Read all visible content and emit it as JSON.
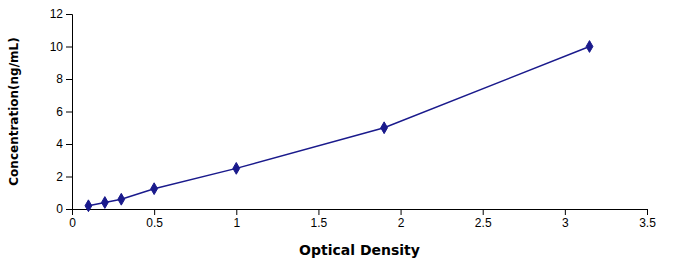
{
  "chart_data": {
    "type": "line",
    "x": [
      0.1,
      0.2,
      0.3,
      0.5,
      1.0,
      1.9,
      3.15
    ],
    "values": [
      0.2,
      0.4,
      0.6,
      1.25,
      2.5,
      5.0,
      10.0
    ],
    "color": "#1a1a8c",
    "marker": "diamond",
    "xlabel": "Optical Density",
    "ylabel": "Concentration(ng/mL)",
    "xlim": [
      0,
      3.5
    ],
    "ylim": [
      0,
      12
    ],
    "xticks": [
      0,
      0.5,
      1,
      1.5,
      2,
      2.5,
      3,
      3.5
    ],
    "yticks": [
      0,
      2,
      4,
      6,
      8,
      10,
      12
    ],
    "grid": false
  }
}
